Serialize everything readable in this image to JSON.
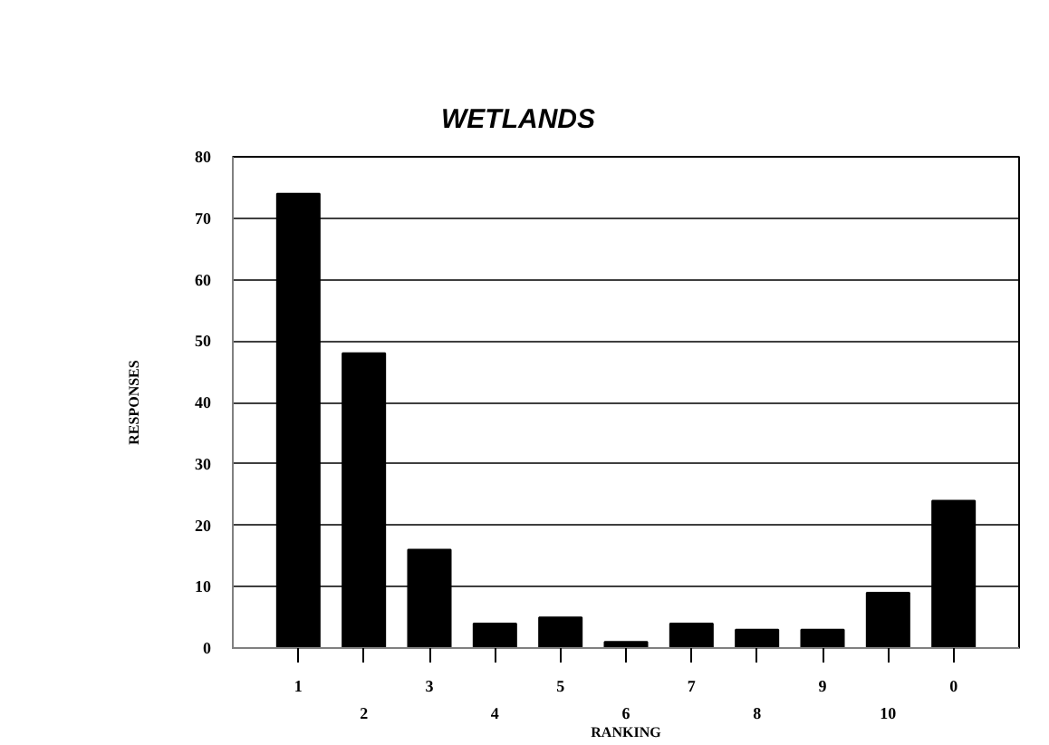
{
  "chart_data": {
    "type": "bar",
    "title": "WETLANDS",
    "xlabel": "RANKING",
    "ylabel": "RESPONSES",
    "categories": [
      "1",
      "2",
      "3",
      "4",
      "5",
      "6",
      "7",
      "8",
      "9",
      "10",
      "0"
    ],
    "values": [
      74,
      48,
      16,
      4,
      5,
      1,
      4,
      3,
      3,
      9,
      24
    ],
    "color": "#000000",
    "ylim": [
      0,
      80
    ],
    "yticks": [
      0,
      10,
      20,
      30,
      40,
      50,
      60,
      70,
      80
    ],
    "grid": "y"
  }
}
